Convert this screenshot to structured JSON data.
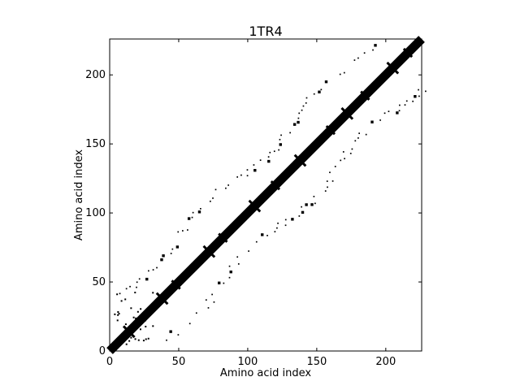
{
  "chart_data": {
    "type": "heatmap",
    "title": "1TR4",
    "xlabel": "Amino acid index",
    "ylabel": "Amino acid index",
    "xlim": [
      0,
      226
    ],
    "ylim": [
      0,
      226
    ],
    "xticks": [
      0,
      50,
      100,
      150,
      200
    ],
    "yticks": [
      0,
      50,
      100,
      150,
      200
    ],
    "grid": false,
    "colors": {
      "contact": "#000000",
      "background": "#ffffff"
    },
    "diagonal_band": {
      "from": 0,
      "to": 226,
      "half_width": 2
    },
    "blobs": [
      {
        "x": 14,
        "y": 14,
        "r": 4
      },
      {
        "x": 38,
        "y": 38,
        "r": 4
      },
      {
        "x": 48,
        "y": 48,
        "r": 3
      },
      {
        "x": 72,
        "y": 72,
        "r": 4
      },
      {
        "x": 82,
        "y": 82,
        "r": 3
      },
      {
        "x": 105,
        "y": 105,
        "r": 4
      },
      {
        "x": 120,
        "y": 120,
        "r": 3
      },
      {
        "x": 138,
        "y": 138,
        "r": 4
      },
      {
        "x": 160,
        "y": 160,
        "r": 3
      },
      {
        "x": 172,
        "y": 172,
        "r": 4
      },
      {
        "x": 185,
        "y": 185,
        "r": 3
      },
      {
        "x": 205,
        "y": 205,
        "r": 4
      },
      {
        "x": 216,
        "y": 216,
        "r": 3
      }
    ],
    "off_diagonal_bands": [
      {
        "x0": 8,
        "y0": 40,
        "x1": 192,
        "y1": 224
      },
      {
        "x0": 40,
        "y0": 8,
        "x1": 224,
        "y1": 192
      }
    ],
    "scatter_seed": 1234
  }
}
